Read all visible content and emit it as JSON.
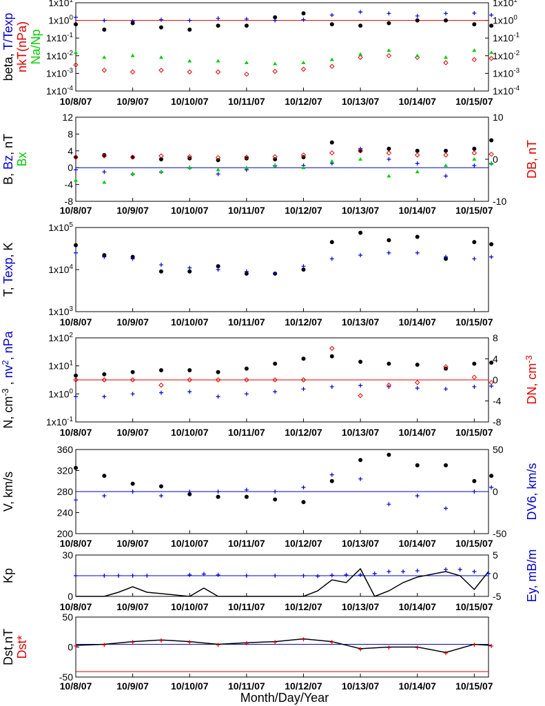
{
  "x_axis_label": "Month/Day/Year",
  "x_tick_labels": [
    "10/8/07",
    "10/9/07",
    "10/10/07",
    "10/11/07",
    "10/12/07",
    "10/13/07",
    "10/14/07",
    "10/15/07"
  ],
  "chart_data": [
    {
      "type": "scatter",
      "panel": "beta",
      "left_label_parts": [
        {
          "text": "beta, ",
          "color": "#000000"
        },
        {
          "text": "T/Texp",
          "color": "#0000cc"
        }
      ],
      "left_label2_parts": [
        {
          "text": "nkT(nPa)",
          "color": "#dd0000"
        }
      ],
      "left_label3_parts": [
        {
          "text": "Na/Np",
          "color": "#00cc00"
        }
      ],
      "y_scale": "log",
      "ylim": [
        0.0001,
        10
      ],
      "y_tick_labels": [
        "1x10^-4",
        "1x10^-3",
        "1x10^-2",
        "1x10^-1",
        "1x10^0",
        "1x10^1"
      ],
      "right_tick_labels": [
        "1x10^-4",
        "1x10^-3",
        "1x10^-2",
        "1x10^-1",
        "1x10^0",
        "1x10^1"
      ],
      "ref_lines": [
        {
          "y": 1,
          "color": "#dd0000"
        }
      ],
      "x_day": [
        0,
        0.5,
        1,
        1.5,
        2,
        2.5,
        3,
        3.5,
        4,
        4.5,
        5,
        5.5,
        6,
        6.5,
        7,
        7.3
      ],
      "series": [
        {
          "color": "#000000",
          "marker": "dot",
          "values": [
            0.6,
            0.3,
            0.7,
            0.4,
            0.3,
            0.5,
            0.5,
            1.5,
            2.5,
            0.6,
            0.5,
            0.7,
            1.0,
            1.0,
            0.6,
            0.5
          ]
        },
        {
          "color": "#0000cc",
          "marker": "plus",
          "values": [
            1.5,
            1.0,
            0.9,
            1.1,
            1.0,
            1.3,
            1.2,
            1.0,
            1.1,
            2.0,
            3.0,
            2.5,
            1.8,
            2.5,
            2.6,
            2.0
          ]
        },
        {
          "color": "#dd0000",
          "marker": "diamond",
          "values": [
            0.003,
            0.0015,
            0.0012,
            0.0015,
            0.0012,
            0.0012,
            0.0009,
            0.0013,
            0.0017,
            0.0025,
            0.008,
            0.01,
            0.008,
            0.004,
            0.006,
            0.007
          ]
        },
        {
          "color": "#00cc00",
          "marker": "tri",
          "values": [
            0.015,
            0.008,
            0.01,
            0.008,
            0.005,
            0.005,
            0.004,
            0.0035,
            0.004,
            0.006,
            0.012,
            0.02,
            0.01,
            0.008,
            0.02,
            0.015
          ]
        }
      ]
    },
    {
      "type": "scatter",
      "panel": "B",
      "left_label_parts": [
        {
          "text": "B, ",
          "color": "#000000"
        },
        {
          "text": "Bz",
          "color": "#0000cc"
        },
        {
          "text": ", nT",
          "color": "#000000"
        }
      ],
      "left_label2_parts": [
        {
          "text": "Bx",
          "color": "#00cc00"
        }
      ],
      "right_label_parts": [
        {
          "text": "DB, nT",
          "color": "#dd0000"
        }
      ],
      "y_scale": "linear",
      "ylim": [
        -8,
        12
      ],
      "y_tick_labels": [
        "-8",
        "-4",
        "0",
        "4",
        "8",
        "12"
      ],
      "right_ylim": [
        -10,
        10
      ],
      "right_tick_labels": [
        "-10",
        "0",
        "10"
      ],
      "ref_lines": [
        {
          "y": 0,
          "color": "#0000cc"
        }
      ],
      "x_day": [
        0,
        0.5,
        1,
        1.5,
        2,
        2.5,
        3,
        3.5,
        4,
        4.5,
        5,
        5.5,
        6,
        6.5,
        7,
        7.3
      ],
      "series": [
        {
          "color": "#000000",
          "marker": "dot",
          "values": [
            2.5,
            3.0,
            2.5,
            2.0,
            2.2,
            1.8,
            2.2,
            2.0,
            2.5,
            6.0,
            4.0,
            4.5,
            4.0,
            4.0,
            4.5,
            6.5
          ]
        },
        {
          "color": "#0000cc",
          "marker": "plus",
          "values": [
            -0.5,
            -1.0,
            -1.5,
            -1.0,
            0.0,
            -1.5,
            -0.5,
            0.5,
            0.5,
            1.0,
            4.5,
            2.0,
            1.0,
            -2.0,
            0.5,
            1.0
          ]
        },
        {
          "color": "#00cc00",
          "marker": "tri",
          "values": [
            -3.0,
            -3.5,
            -1.5,
            -1.0,
            0.0,
            -0.5,
            0.0,
            0.5,
            0.0,
            1.5,
            2.0,
            -2.0,
            -1.0,
            0.5,
            2.0,
            1.0
          ]
        },
        {
          "color": "#dd0000",
          "marker": "diamond",
          "axis": "right",
          "values": [
            0.5,
            0.8,
            0.5,
            0.8,
            0.6,
            0.4,
            0.5,
            0.6,
            1.0,
            1.5,
            2.0,
            1.5,
            1.0,
            1.0,
            1.5,
            1.2
          ]
        }
      ]
    },
    {
      "type": "scatter",
      "panel": "T",
      "left_label_parts": [
        {
          "text": "T, ",
          "color": "#000000"
        },
        {
          "text": "Texp",
          "color": "#0000cc"
        },
        {
          "text": ", K",
          "color": "#000000"
        }
      ],
      "y_scale": "log",
      "ylim": [
        1000,
        100000
      ],
      "y_tick_labels": [
        "1x10^3",
        "1x10^4",
        "1x10^5"
      ],
      "x_day": [
        0,
        0.5,
        1,
        1.5,
        2,
        2.5,
        3,
        3.5,
        4,
        4.5,
        5,
        5.5,
        6,
        6.5,
        7,
        7.3
      ],
      "series": [
        {
          "color": "#000000",
          "marker": "dot",
          "values": [
            38000,
            22000,
            20000,
            9000,
            9000,
            12000,
            8000,
            8000,
            10000,
            45000,
            75000,
            50000,
            60000,
            18000,
            45000,
            40000
          ]
        },
        {
          "color": "#0000cc",
          "marker": "plus",
          "values": [
            25000,
            20000,
            18000,
            13000,
            11000,
            10000,
            9000,
            8000,
            12000,
            18000,
            22000,
            25000,
            25000,
            20000,
            18000,
            20000
          ]
        }
      ]
    },
    {
      "type": "scatter",
      "panel": "N",
      "left_label_parts": [
        {
          "text": "N, cm^-3 ,",
          "color": "#000000"
        },
        {
          "text": " nv^2, nPa",
          "color": "#0000cc"
        }
      ],
      "right_label_parts": [
        {
          "text": "DN, cm^-3",
          "color": "#dd0000"
        }
      ],
      "y_scale": "log",
      "ylim": [
        0.1,
        100
      ],
      "y_tick_labels": [
        "1x10^-1",
        "1x10^0",
        "1x10^1",
        "1x10^2"
      ],
      "right_ylim": [
        -8,
        8
      ],
      "right_tick_labels": [
        "-8",
        "-4",
        "0",
        "4",
        "8"
      ],
      "ref_lines": [
        {
          "y": 0,
          "color": "#dd0000",
          "axis": "right"
        }
      ],
      "x_day": [
        0,
        0.5,
        1,
        1.5,
        2,
        2.5,
        3,
        3.5,
        4,
        4.5,
        5,
        5.5,
        6,
        6.5,
        7,
        7.3
      ],
      "series": [
        {
          "color": "#000000",
          "marker": "dot",
          "values": [
            4.5,
            5.0,
            6.0,
            7.0,
            7.0,
            6.0,
            8.0,
            12.0,
            18.0,
            22.0,
            14.0,
            12.0,
            11.0,
            8.0,
            12.0,
            13.0
          ]
        },
        {
          "color": "#0000cc",
          "marker": "plus",
          "values": [
            0.8,
            0.8,
            1.0,
            1.1,
            1.2,
            0.8,
            1.0,
            1.2,
            1.5,
            1.8,
            2.0,
            1.8,
            1.6,
            1.5,
            1.8,
            1.9
          ]
        },
        {
          "color": "#dd0000",
          "marker": "diamond",
          "axis": "right",
          "values": [
            0,
            0,
            0,
            -1,
            0,
            0,
            0,
            0,
            0,
            6,
            -3,
            -1,
            -0.5,
            2.5,
            0.5,
            -0.5
          ]
        }
      ]
    },
    {
      "type": "scatter",
      "panel": "V",
      "left_label_parts": [
        {
          "text": "V, km/s",
          "color": "#000000"
        }
      ],
      "right_label_parts": [
        {
          "text": "DV6, km/s",
          "color": "#0000cc"
        }
      ],
      "y_scale": "linear",
      "ylim": [
        200,
        360
      ],
      "y_tick_labels": [
        "200",
        "240",
        "280",
        "320",
        "360"
      ],
      "right_ylim": [
        -50,
        50
      ],
      "right_tick_labels": [
        "-50",
        "0",
        "50"
      ],
      "ref_lines": [
        {
          "y": 0,
          "color": "#0000cc",
          "axis": "right"
        }
      ],
      "x_day": [
        0,
        0.5,
        1,
        1.5,
        2,
        2.5,
        3,
        3.5,
        4,
        4.5,
        5,
        5.5,
        6,
        6.5,
        7,
        7.3
      ],
      "series": [
        {
          "color": "#000000",
          "marker": "dot",
          "values": [
            325,
            310,
            295,
            290,
            275,
            270,
            270,
            265,
            260,
            300,
            340,
            350,
            330,
            330,
            300,
            310
          ]
        },
        {
          "color": "#0000cc",
          "marker": "plus",
          "values": [
            -10,
            -5,
            0,
            -5,
            0,
            0,
            2,
            0,
            5,
            20,
            15,
            -15,
            -5,
            -20,
            0,
            5
          ],
          "axis": "right"
        }
      ]
    },
    {
      "type": "line",
      "panel": "Kp",
      "left_label_parts": [
        {
          "text": "Kp",
          "color": "#000000"
        }
      ],
      "right_label_parts": [
        {
          "text": "Ey, mB/m",
          "color": "#0000cc"
        }
      ],
      "y_scale": "linear",
      "ylim": [
        0,
        30
      ],
      "y_tick_labels": [
        "0",
        "30"
      ],
      "right_ylim": [
        -5,
        5
      ],
      "right_tick_labels": [
        "-5",
        "0",
        "5"
      ],
      "ref_lines": [
        {
          "y": 0,
          "color": "#0000cc",
          "axis": "right"
        }
      ],
      "x_day": [
        0,
        0.5,
        0.75,
        1.0,
        1.25,
        2.0,
        2.25,
        2.5,
        3.0,
        3.5,
        4.0,
        4.25,
        4.5,
        4.75,
        5.0,
        5.25,
        5.5,
        5.75,
        6.0,
        6.5,
        6.75,
        7.0,
        7.25
      ],
      "series": [
        {
          "color": "#000000",
          "marker": "line",
          "values": [
            0,
            0,
            3,
            7,
            3,
            0,
            6,
            0,
            0,
            0,
            0,
            4,
            12,
            10,
            20,
            0,
            4,
            10,
            14,
            18,
            15,
            5,
            18
          ]
        },
        {
          "color": "#0000cc",
          "marker": "plus",
          "axis": "right",
          "values": [
            0,
            0,
            0,
            0,
            0,
            0.2,
            0.4,
            0.2,
            0,
            0,
            0,
            -0.1,
            0.1,
            0.2,
            0.2,
            0.5,
            1.0,
            1.0,
            1.2,
            1.5,
            1.5,
            1.0,
            0.5
          ]
        }
      ]
    },
    {
      "type": "line",
      "panel": "Dst",
      "left_label_parts": [
        {
          "text": "Dst,nT",
          "color": "#000000"
        }
      ],
      "left_label2_parts": [
        {
          "text": "Dst*",
          "color": "#dd0000"
        }
      ],
      "y_scale": "linear",
      "ylim": [
        -60,
        50
      ],
      "y_tick_labels": [
        "-50",
        "0",
        "50"
      ],
      "ref_lines": [
        {
          "y": 0,
          "color": "#0000cc"
        },
        {
          "y": -50,
          "color": "#dd0000"
        }
      ],
      "x_day": [
        0,
        0.5,
        1,
        1.5,
        2,
        2.5,
        3,
        3.5,
        4,
        4.5,
        5,
        5.5,
        6,
        6.5,
        7,
        7.3
      ],
      "series": [
        {
          "color": "#000000",
          "marker": "line",
          "values": [
            -2,
            0,
            5,
            8,
            5,
            0,
            3,
            5,
            10,
            5,
            -8,
            -5,
            -5,
            -15,
            0,
            -2
          ]
        },
        {
          "color": "#dd0000",
          "marker": "plus",
          "values": [
            -3,
            -1,
            4,
            7,
            4,
            -1,
            2,
            4,
            9,
            4,
            -9,
            -6,
            -6,
            -16,
            -1,
            -3
          ]
        }
      ]
    }
  ]
}
